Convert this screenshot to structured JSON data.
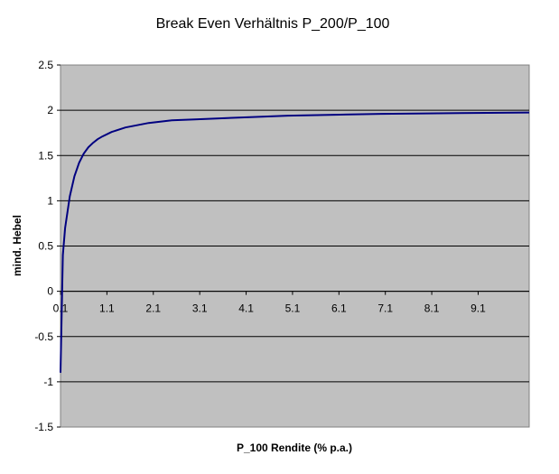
{
  "chart_data": {
    "type": "line",
    "title": "Break Even Verhältnis P_200/P_100",
    "xlabel": "P_100 Rendite (% p.a.)",
    "ylabel": "mind. Hebel",
    "xlim": [
      0.1,
      10.2
    ],
    "ylim": [
      -1.5,
      2.5
    ],
    "xticks": [
      "0.1",
      "1.1",
      "2.1",
      "3.1",
      "4.1",
      "5.1",
      "6.1",
      "7.1",
      "8.1",
      "9.1"
    ],
    "yticks": [
      "2.5",
      "2",
      "1.5",
      "1",
      "0.5",
      "0",
      "-0.5",
      "-1",
      "-1.5"
    ],
    "grid": "horizontal",
    "background": "#c0c0c0",
    "series": [
      {
        "color": "#000080",
        "x": [
          0.1,
          0.15,
          0.2,
          0.3,
          0.4,
          0.5,
          0.6,
          0.7,
          0.8,
          0.9,
          1.0,
          1.2,
          1.5,
          2.0,
          2.5,
          3.0,
          4.0,
          5.0,
          6.0,
          7.0,
          8.0,
          9.0,
          10.2
        ],
        "y": [
          -0.9,
          0.4,
          0.7,
          1.05,
          1.27,
          1.42,
          1.52,
          1.59,
          1.64,
          1.68,
          1.71,
          1.76,
          1.81,
          1.86,
          1.89,
          1.9,
          1.92,
          1.94,
          1.95,
          1.96,
          1.965,
          1.97,
          1.975
        ]
      }
    ]
  }
}
